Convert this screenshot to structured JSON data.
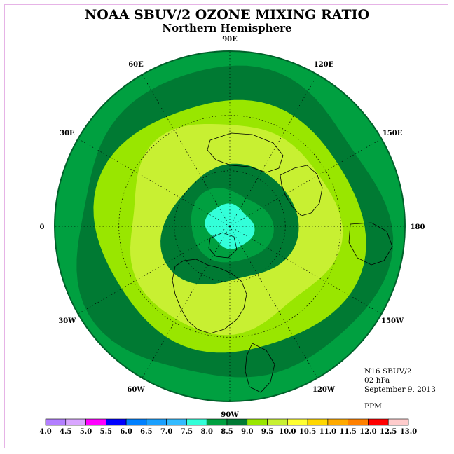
{
  "header": {
    "title": "NOAA SBUV/2 OZONE MIXING RATIO",
    "subtitle": "Northern Hemisphere"
  },
  "info": {
    "instrument": "N16 SBUV/2",
    "pressure_level": "02 hPa",
    "date": "September 9, 2013",
    "units": "PPM"
  },
  "map": {
    "projection": "north-polar-stereographic",
    "longitude_labels": [
      "90E",
      "60E",
      "30E",
      "0",
      "30W",
      "60W",
      "90W",
      "120W",
      "150W",
      "180",
      "150E",
      "120E"
    ],
    "longitude_values_deg": [
      90,
      60,
      30,
      0,
      -30,
      -60,
      -90,
      -120,
      -150,
      180,
      150,
      120
    ],
    "latitude_circles_deg": [
      30,
      60
    ],
    "ozone_bands": [
      {
        "range": "8.0-8.5",
        "color": "#00a040",
        "region": "outer ring, equatorward of ~25N"
      },
      {
        "range": "8.5-9.0",
        "color": "#007a33",
        "region": "ring around ~30N"
      },
      {
        "range": "9.0-9.5",
        "color": "#99e600",
        "region": "broad mid-latitude band"
      },
      {
        "range": "9.5-10.0",
        "color": "#c8f032",
        "region": "~40N-60N ring"
      },
      {
        "range": "8.5-9.0",
        "color": "#007a33",
        "region": "high-latitude ring ~65N-75N"
      },
      {
        "range": "8.0-8.5",
        "color": "#00a040",
        "region": "~78N-82N"
      },
      {
        "range": "7.5-8.0",
        "color": "#33ffd9",
        "region": "polar cap"
      }
    ]
  },
  "colorbar": {
    "units": "PPM",
    "ticks": [
      "4.0",
      "4.5",
      "5.0",
      "5.5",
      "6.0",
      "6.5",
      "7.0",
      "7.5",
      "8.0",
      "8.5",
      "9.0",
      "9.5",
      "10.0",
      "10.5",
      "11.0",
      "11.5",
      "12.0",
      "12.5",
      "13.0"
    ],
    "colors": [
      "#b37fff",
      "#d9a6ff",
      "#ff00ff",
      "#0000ff",
      "#0080ff",
      "#1aa0ff",
      "#33bbff",
      "#33ffd9",
      "#00a040",
      "#007a33",
      "#99e600",
      "#c8f032",
      "#ffff33",
      "#ffd700",
      "#ffaa00",
      "#ff8000",
      "#ff0000",
      "#ffcccc",
      "#8b4513"
    ]
  }
}
